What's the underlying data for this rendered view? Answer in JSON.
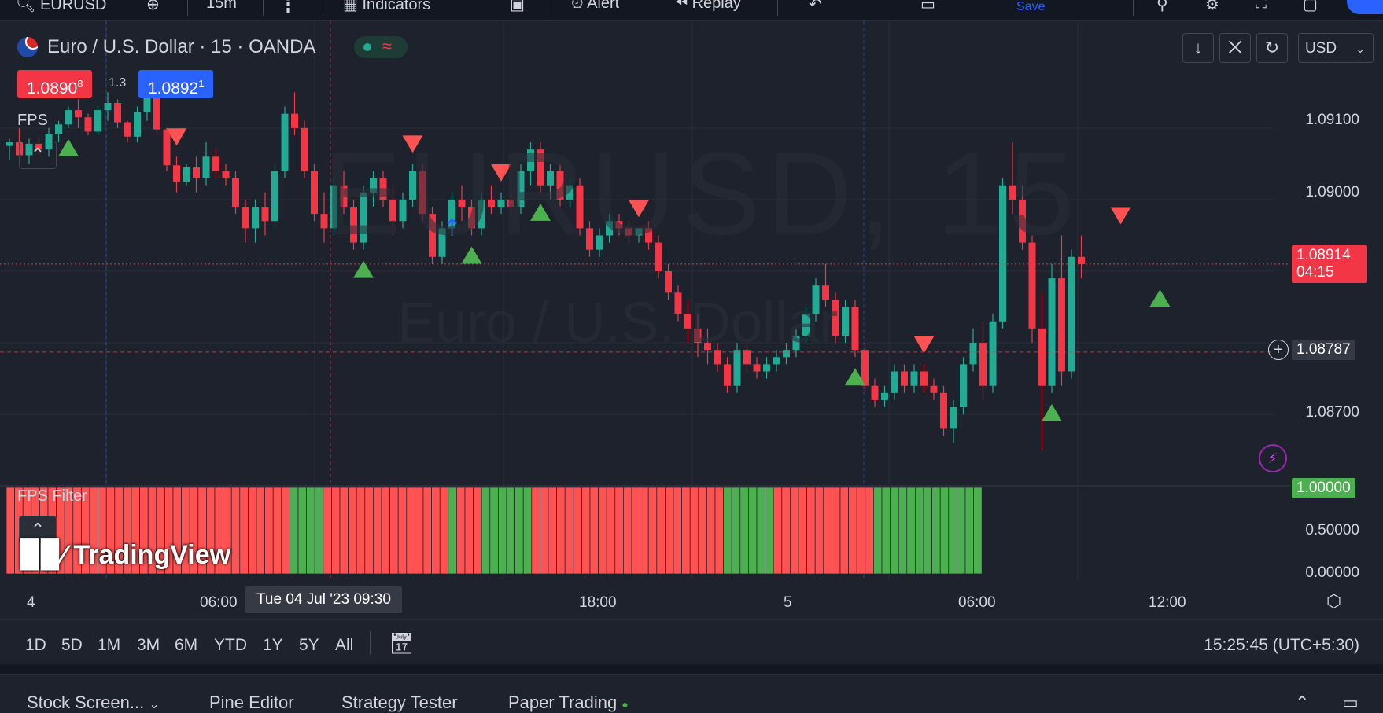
{
  "topbar": {
    "symbol": "EURUSD",
    "interval": "15m",
    "indicators": "Indicators",
    "alert": "Alert",
    "replay": "Replay",
    "save": "Save"
  },
  "legend": {
    "title": "Euro / U.S. Dollar · 15 · OANDA",
    "sell_price_main": "1.0890",
    "sell_price_sup": "8",
    "spread": "1.3",
    "buy_price_main": "1.0892",
    "buy_price_sup": "1",
    "indicator_main": "FPS",
    "indicator_sub": "FPS Filter"
  },
  "watermark": {
    "symbol": "EURUSD, 15",
    "name": "Euro / U.S. Dollar"
  },
  "currency": "USD",
  "price_axis": {
    "labels": [
      "1.09100",
      "1.09000",
      "1.08700"
    ],
    "current_price": "1.08914",
    "countdown": "04:15",
    "crosshair_price": "1.08787"
  },
  "sub_axis": {
    "labels": [
      "1.00000",
      "0.50000",
      "0.00000"
    ]
  },
  "time_axis": {
    "labels": [
      "4",
      "06:00",
      "18:00",
      "5",
      "06:00",
      "12:00"
    ],
    "crosshair_date": "Tue 04 Jul '23   09:30"
  },
  "range_bar": {
    "ranges": [
      "1D",
      "5D",
      "1M",
      "3M",
      "6M",
      "YTD",
      "1Y",
      "5Y",
      "All"
    ],
    "clock": "15:25:45 (UTC+5:30)"
  },
  "bottom_tabs": {
    "stock_screener": "Stock Screen...",
    "pine_editor": "Pine Editor",
    "strategy_tester": "Strategy Tester",
    "paper_trading": "Paper Trading"
  },
  "brand": "TradingView",
  "colors": {
    "up": "#22ab94",
    "down": "#f23645",
    "buy_box": "#2962ff",
    "sell_box": "#f23645",
    "filter_green": "#4caf50",
    "filter_red": "#ff5252"
  },
  "chart_data": {
    "type": "candlestick",
    "symbol": "EURUSD",
    "interval": "15",
    "y_range": [
      1.0862,
      1.0918
    ],
    "candles": [
      [
        1.09075,
        1.09085,
        1.09055,
        1.0908
      ],
      [
        1.0908,
        1.091,
        1.0906,
        1.09062
      ],
      [
        1.09062,
        1.09085,
        1.0905,
        1.09078
      ],
      [
        1.09078,
        1.0909,
        1.0906,
        1.0907
      ],
      [
        1.0907,
        1.091,
        1.0906,
        1.09092
      ],
      [
        1.09092,
        1.0911,
        1.0908,
        1.09105
      ],
      [
        1.09105,
        1.0913,
        1.091,
        1.09125
      ],
      [
        1.09125,
        1.0914,
        1.091,
        1.09115
      ],
      [
        1.09115,
        1.0912,
        1.0909,
        1.09095
      ],
      [
        1.09095,
        1.0913,
        1.0909,
        1.09125
      ],
      [
        1.09125,
        1.0915,
        1.0911,
        1.09135
      ],
      [
        1.09135,
        1.0914,
        1.091,
        1.09108
      ],
      [
        1.09108,
        1.0911,
        1.0908,
        1.09088
      ],
      [
        1.09088,
        1.0913,
        1.0908,
        1.09122
      ],
      [
        1.09122,
        1.0916,
        1.0911,
        1.09145
      ],
      [
        1.09145,
        1.0915,
        1.0909,
        1.09098
      ],
      [
        1.09098,
        1.091,
        1.0904,
        1.09048
      ],
      [
        1.09048,
        1.0906,
        1.0901,
        1.09025
      ],
      [
        1.09025,
        1.0905,
        1.0902,
        1.09045
      ],
      [
        1.09045,
        1.0906,
        1.0901,
        1.0903
      ],
      [
        1.0903,
        1.0908,
        1.0902,
        1.0906
      ],
      [
        1.0906,
        1.0907,
        1.0903,
        1.0904
      ],
      [
        1.0904,
        1.0905,
        1.0902,
        1.0903
      ],
      [
        1.0903,
        1.0904,
        1.0898,
        1.0899
      ],
      [
        1.0899,
        1.09,
        1.0894,
        1.0896
      ],
      [
        1.0896,
        1.09,
        1.0894,
        1.0899
      ],
      [
        1.0899,
        1.0901,
        1.0895,
        1.0897
      ],
      [
        1.0897,
        1.0905,
        1.0896,
        1.0904
      ],
      [
        1.0904,
        1.0913,
        1.0903,
        1.0912
      ],
      [
        1.0912,
        1.0915,
        1.0909,
        1.091
      ],
      [
        1.091,
        1.0911,
        1.0903,
        1.0904
      ],
      [
        1.0904,
        1.0905,
        1.0897,
        1.0898
      ],
      [
        1.0898,
        1.0901,
        1.0894,
        1.0896
      ],
      [
        1.0896,
        1.0903,
        1.0895,
        1.0902
      ],
      [
        1.0902,
        1.0904,
        1.0898,
        1.0899
      ],
      [
        1.0899,
        1.09,
        1.0893,
        1.0894
      ],
      [
        1.0894,
        1.0902,
        1.0893,
        1.0901
      ],
      [
        1.0901,
        1.0904,
        1.0899,
        1.0903
      ],
      [
        1.0903,
        1.0904,
        1.0899,
        1.09
      ],
      [
        1.09,
        1.0902,
        1.0895,
        1.0897
      ],
      [
        1.0897,
        1.0901,
        1.0896,
        1.09
      ],
      [
        1.09,
        1.0905,
        1.0899,
        1.0904
      ],
      [
        1.0904,
        1.0905,
        1.0897,
        1.0898
      ],
      [
        1.0898,
        1.0899,
        1.0891,
        1.0892
      ],
      [
        1.0892,
        1.0897,
        1.0891,
        1.0896
      ],
      [
        1.0896,
        1.0901,
        1.0895,
        1.09
      ],
      [
        1.09,
        1.0902,
        1.0897,
        1.0899
      ],
      [
        1.0899,
        1.09,
        1.0895,
        1.0896
      ],
      [
        1.0896,
        1.0901,
        1.0895,
        1.09
      ],
      [
        1.09,
        1.0902,
        1.0898,
        1.0899
      ],
      [
        1.0899,
        1.0901,
        1.0898,
        1.09
      ],
      [
        1.09,
        1.0901,
        1.0898,
        1.0899
      ],
      [
        1.0899,
        1.0905,
        1.0898,
        1.0904
      ],
      [
        1.0904,
        1.0908,
        1.0902,
        1.0907
      ],
      [
        1.0907,
        1.0908,
        1.0901,
        1.0902
      ],
      [
        1.0902,
        1.0905,
        1.09,
        1.0904
      ],
      [
        1.0904,
        1.0905,
        1.0899,
        1.09
      ],
      [
        1.09,
        1.0903,
        1.0899,
        1.0902
      ],
      [
        1.0902,
        1.0903,
        1.0895,
        1.0896
      ],
      [
        1.0896,
        1.0897,
        1.0892,
        1.0893
      ],
      [
        1.0893,
        1.0896,
        1.0892,
        1.0895
      ],
      [
        1.0895,
        1.0898,
        1.0894,
        1.0897
      ],
      [
        1.0897,
        1.0898,
        1.0895,
        1.0896
      ],
      [
        1.0896,
        1.0897,
        1.0894,
        1.0895
      ],
      [
        1.0895,
        1.0896,
        1.0894,
        1.0896
      ],
      [
        1.0896,
        1.0897,
        1.0893,
        1.0894
      ],
      [
        1.0894,
        1.0895,
        1.0889,
        1.089
      ],
      [
        1.089,
        1.0891,
        1.0886,
        1.0887
      ],
      [
        1.0887,
        1.0888,
        1.0883,
        1.0884
      ],
      [
        1.0884,
        1.0886,
        1.088,
        1.0882
      ],
      [
        1.0882,
        1.0884,
        1.0878,
        1.088
      ],
      [
        1.088,
        1.0882,
        1.0877,
        1.0879
      ],
      [
        1.0879,
        1.088,
        1.0876,
        1.0877
      ],
      [
        1.0877,
        1.0878,
        1.0873,
        1.0874
      ],
      [
        1.0874,
        1.088,
        1.0873,
        1.0879
      ],
      [
        1.0879,
        1.088,
        1.0876,
        1.0877
      ],
      [
        1.0877,
        1.0878,
        1.0875,
        1.0876
      ],
      [
        1.0876,
        1.0878,
        1.0875,
        1.0877
      ],
      [
        1.0877,
        1.0879,
        1.0876,
        1.0878
      ],
      [
        1.0878,
        1.088,
        1.0877,
        1.0879
      ],
      [
        1.0879,
        1.0882,
        1.0878,
        1.0881
      ],
      [
        1.0881,
        1.0885,
        1.088,
        1.0884
      ],
      [
        1.0884,
        1.0889,
        1.0883,
        1.0888
      ],
      [
        1.0888,
        1.0891,
        1.0885,
        1.0886
      ],
      [
        1.0886,
        1.0887,
        1.088,
        1.0881
      ],
      [
        1.0881,
        1.0886,
        1.088,
        1.0885
      ],
      [
        1.0885,
        1.0886,
        1.0878,
        1.0879
      ],
      [
        1.0879,
        1.088,
        1.0873,
        1.0874
      ],
      [
        1.0874,
        1.0875,
        1.0871,
        1.0872
      ],
      [
        1.0872,
        1.0874,
        1.0871,
        1.0873
      ],
      [
        1.0873,
        1.0877,
        1.0872,
        1.0876
      ],
      [
        1.0876,
        1.0877,
        1.0873,
        1.0874
      ],
      [
        1.0874,
        1.0877,
        1.0873,
        1.0876
      ],
      [
        1.0876,
        1.0877,
        1.0873,
        1.0874
      ],
      [
        1.0874,
        1.0875,
        1.0872,
        1.0873
      ],
      [
        1.0873,
        1.0874,
        1.0867,
        1.0868
      ],
      [
        1.0868,
        1.0872,
        1.0866,
        1.0871
      ],
      [
        1.0871,
        1.0878,
        1.087,
        1.0877
      ],
      [
        1.0877,
        1.0882,
        1.0876,
        1.088
      ],
      [
        1.088,
        1.0883,
        1.0872,
        1.0874
      ],
      [
        1.0874,
        1.0884,
        1.0873,
        1.0883
      ],
      [
        1.0883,
        1.0903,
        1.0882,
        1.0902
      ],
      [
        1.0902,
        1.0908,
        1.0898,
        1.09
      ],
      [
        1.09,
        1.0902,
        1.0893,
        1.0894
      ],
      [
        1.0894,
        1.0895,
        1.088,
        1.0882
      ],
      [
        1.0882,
        1.0887,
        1.0865,
        1.0874
      ],
      [
        1.0874,
        1.0891,
        1.0873,
        1.0889
      ],
      [
        1.0889,
        1.0895,
        1.0874,
        1.0876
      ],
      [
        1.0876,
        1.0893,
        1.0875,
        1.0892
      ],
      [
        1.0892,
        1.0895,
        1.0889,
        1.0891
      ]
    ],
    "filter_segments": [
      {
        "value": 0,
        "bars": 34
      },
      {
        "value": 1,
        "bars": 4
      },
      {
        "value": 0,
        "bars": 15
      },
      {
        "value": 1,
        "bars": 1
      },
      {
        "value": 0,
        "bars": 3
      },
      {
        "value": 1,
        "bars": 6
      },
      {
        "value": 0,
        "bars": 23
      },
      {
        "value": 1,
        "bars": 6
      },
      {
        "value": 0,
        "bars": 12
      },
      {
        "value": 1,
        "bars": 13
      }
    ],
    "signals": [
      {
        "type": "buy",
        "bar": 6
      },
      {
        "type": "sell",
        "bar": 17
      },
      {
        "type": "buy",
        "bar": 36
      },
      {
        "type": "sell",
        "bar": 41
      },
      {
        "type": "sell",
        "bar": 50
      },
      {
        "type": "buy",
        "bar": 47
      },
      {
        "type": "buy",
        "bar": 54
      },
      {
        "type": "sell",
        "bar": 64
      },
      {
        "type": "buy",
        "bar": 86
      },
      {
        "type": "sell",
        "bar": 93
      },
      {
        "type": "buy",
        "bar": 106
      },
      {
        "type": "sell",
        "bar": 113
      },
      {
        "type": "buy",
        "bar": 117
      }
    ]
  }
}
